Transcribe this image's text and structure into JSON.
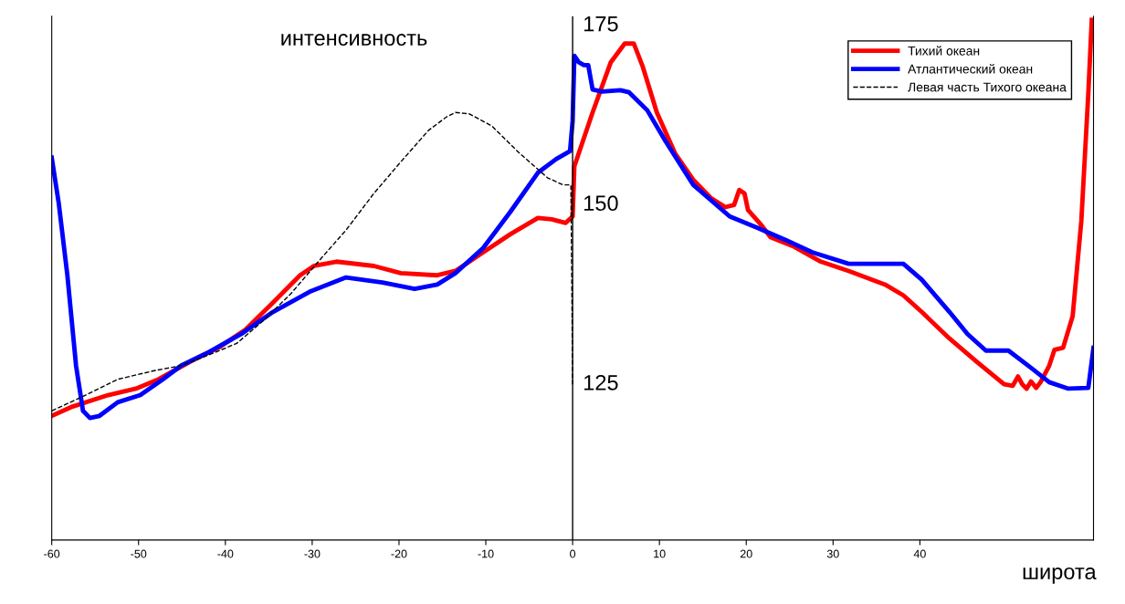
{
  "chart_data": {
    "type": "line",
    "xlabel": "широта",
    "ylabel": "интенсивность",
    "xlim": [
      -60,
      60
    ],
    "ylim": [
      103,
      176
    ],
    "xticks": [
      -60,
      -50,
      -40,
      -30,
      -20,
      -10,
      0,
      10,
      20,
      30,
      40
    ],
    "yticks": [
      125,
      150,
      175
    ],
    "legend": "top right",
    "grid": false,
    "series": [
      {
        "name": "Тихий океан",
        "color": "#ff0000",
        "line_style": "solid",
        "x": [
          -60,
          -57.6,
          -53.5,
          -50.3,
          -47.7,
          -44,
          -40.8,
          -37.7,
          -34.5,
          -31.4,
          -29.8,
          -27.2,
          -22.9,
          -19.8,
          -15.6,
          -13.5,
          -10.3,
          -7.2,
          -4,
          -2.4,
          -0.8,
          0,
          0.2,
          2.3,
          4.4,
          6,
          7.05,
          8.1,
          9.7,
          11.8,
          13.9,
          16,
          17.6,
          18.6,
          19.2,
          19.8,
          20.2,
          21.8,
          22.8,
          25.5,
          28.6,
          31.8,
          36,
          38.1,
          40.2,
          43.4,
          46.5,
          49.7,
          50.7,
          51.3,
          51.8,
          52.3,
          52.8,
          53.4,
          53.9,
          54.9,
          55.5,
          56.5,
          57.6,
          58.6,
          59.4,
          59.8
        ],
        "values": [
          120.3,
          121.6,
          123.2,
          124.1,
          125.4,
          127.9,
          129.8,
          132.3,
          136.1,
          139.9,
          141.2,
          141.8,
          141.2,
          140.2,
          139.9,
          140.5,
          143.1,
          145.6,
          147.9,
          147.7,
          147.2,
          148.1,
          155.1,
          162.6,
          169.6,
          172.2,
          172.2,
          168.9,
          162.6,
          156.9,
          153.2,
          150.6,
          149.4,
          149.7,
          151.8,
          151.3,
          149,
          146.8,
          145.2,
          143.9,
          141.8,
          140.5,
          138.6,
          137.1,
          134.8,
          131.1,
          127.9,
          124.7,
          124.5,
          125.8,
          124.7,
          124.1,
          125.1,
          124.2,
          125,
          127.3,
          129.5,
          129.8,
          134.2,
          147.5,
          165.2,
          175.5
        ]
      },
      {
        "name": "Атлантический океан",
        "color": "#0000ff",
        "line_style": "solid",
        "x": [
          -60,
          -59.2,
          -58.2,
          -57.2,
          -56.4,
          -55.6,
          -54.5,
          -52.4,
          -49.8,
          -47.2,
          -45.1,
          -41.9,
          -38.2,
          -34.5,
          -30.3,
          -26.1,
          -21.9,
          -18.2,
          -15.6,
          -13.5,
          -10.3,
          -7.2,
          -4,
          -1.9,
          -0.3,
          0,
          0.2,
          0.7,
          1.3,
          1.8,
          2.3,
          3.4,
          5.5,
          6.5,
          8.6,
          10.7,
          13.9,
          18.1,
          21.3,
          24.4,
          27.6,
          31.8,
          38.1,
          40.2,
          43.4,
          45.5,
          47.6,
          50.2,
          52.8,
          54.9,
          57.1,
          59.4,
          60
        ],
        "values": [
          156.3,
          150,
          139.9,
          127.3,
          121,
          120,
          120.3,
          122.2,
          123.2,
          125.4,
          127.3,
          129.2,
          131.7,
          134.8,
          137.6,
          139.6,
          138.9,
          138,
          138.6,
          140.2,
          143.7,
          148.7,
          154.2,
          156.1,
          157.2,
          161.4,
          170.5,
          169.6,
          169.2,
          169.2,
          165.8,
          165.5,
          165.7,
          165.4,
          162.9,
          158.6,
          152.5,
          148.1,
          146.5,
          144.9,
          143.1,
          141.5,
          141.5,
          139.3,
          134.8,
          131.7,
          129.4,
          129.4,
          127,
          125,
          124.1,
          124.2,
          129.8
        ]
      },
      {
        "name": "Левая часть Тихого океана",
        "color": "#000000",
        "line_style": "dashed",
        "x": [
          -60,
          -56.6,
          -52.4,
          -48.2,
          -45.1,
          -41.9,
          -38.7,
          -35.6,
          -32.4,
          -29.3,
          -26.1,
          -22.9,
          -19.8,
          -16.6,
          -14.5,
          -13.5,
          -11.9,
          -9.3,
          -6.1,
          -2.9,
          -1.1,
          -0.2,
          -0.1,
          0
        ],
        "values": [
          121,
          122.9,
          125.4,
          126.6,
          127.3,
          128.8,
          130.4,
          133.6,
          137.4,
          141.8,
          146.2,
          151.3,
          155.7,
          160.1,
          162,
          162.6,
          162.4,
          160.7,
          156.9,
          153.5,
          152.5,
          152.5,
          139.9,
          124.7
        ]
      }
    ]
  }
}
